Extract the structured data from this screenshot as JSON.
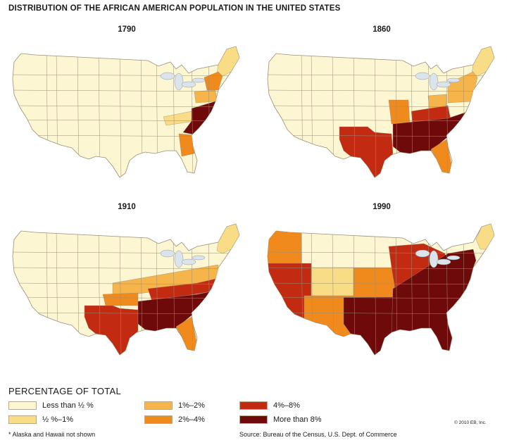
{
  "title": "DISTRIBUTION OF THE AFRICAN AMERICAN POPULATION IN THE UNITED STATES",
  "colors": {
    "less_than_half": "#fdf6d3",
    "half_to_one": "#f9dc86",
    "one_to_two": "#f6b54a",
    "two_to_four": "#f08a1c",
    "four_to_eight": "#c32a12",
    "more_than_eight": "#6e0a09",
    "state_border": "#9a8f78",
    "water": "#dbe4ea"
  },
  "maps": [
    {
      "year": "1790",
      "shaded_regions": [
        {
          "region": "new-england",
          "category": "half_to_one"
        },
        {
          "region": "new-york",
          "category": "two_to_four"
        },
        {
          "region": "pennsylvania",
          "category": "one_to_two"
        },
        {
          "region": "kentucky",
          "category": "half_to_one"
        },
        {
          "region": "virginia-carolinas",
          "category": "more_than_eight"
        },
        {
          "region": "georgia",
          "category": "two_to_four"
        }
      ]
    },
    {
      "year": "1860",
      "shaded_regions": [
        {
          "region": "new-england",
          "category": "half_to_one"
        },
        {
          "region": "new-york-pa",
          "category": "one_to_two"
        },
        {
          "region": "ohio",
          "category": "one_to_two"
        },
        {
          "region": "missouri",
          "category": "two_to_four"
        },
        {
          "region": "texas",
          "category": "four_to_eight"
        },
        {
          "region": "kentucky-tennessee",
          "category": "four_to_eight"
        },
        {
          "region": "deep-south",
          "category": "more_than_eight"
        },
        {
          "region": "florida",
          "category": "two_to_four"
        }
      ]
    },
    {
      "year": "1910",
      "shaded_regions": [
        {
          "region": "new-england",
          "category": "half_to_one"
        },
        {
          "region": "midwest-band",
          "category": "one_to_two"
        },
        {
          "region": "oklahoma",
          "category": "two_to_four"
        },
        {
          "region": "texas",
          "category": "four_to_eight"
        },
        {
          "region": "kentucky-tennessee",
          "category": "four_to_eight"
        },
        {
          "region": "deep-south",
          "category": "more_than_eight"
        },
        {
          "region": "florida",
          "category": "two_to_four"
        }
      ]
    },
    {
      "year": "1990",
      "shaded_regions": [
        {
          "region": "washington-oregon",
          "category": "two_to_four"
        },
        {
          "region": "california-nevada",
          "category": "four_to_eight"
        },
        {
          "region": "arizona-newmexico",
          "category": "two_to_four"
        },
        {
          "region": "colorado-utah",
          "category": "half_to_one"
        },
        {
          "region": "kansas-nebraska",
          "category": "two_to_four"
        },
        {
          "region": "texas-oklahoma",
          "category": "more_than_eight"
        },
        {
          "region": "midwest",
          "category": "four_to_eight"
        },
        {
          "region": "east-south",
          "category": "more_than_eight"
        },
        {
          "region": "new-england",
          "category": "half_to_one"
        }
      ]
    }
  ],
  "legend": {
    "title": "PERCENTAGE OF TOTAL",
    "items": [
      {
        "label": "Less than ½ %",
        "category": "less_than_half"
      },
      {
        "label": "½ %–1%",
        "category": "half_to_one"
      },
      {
        "label": "1%–2%",
        "category": "one_to_two"
      },
      {
        "label": "2%–4%",
        "category": "two_to_four"
      },
      {
        "label": "4%–8%",
        "category": "four_to_eight"
      },
      {
        "label": "More than 8%",
        "category": "more_than_eight"
      }
    ]
  },
  "footnote": "* Alaska and Hawaii not shown",
  "source": "Source: Bureau of the Census, U.S. Dept. of Commerce",
  "copyright": "© 2010 EB, Inc."
}
